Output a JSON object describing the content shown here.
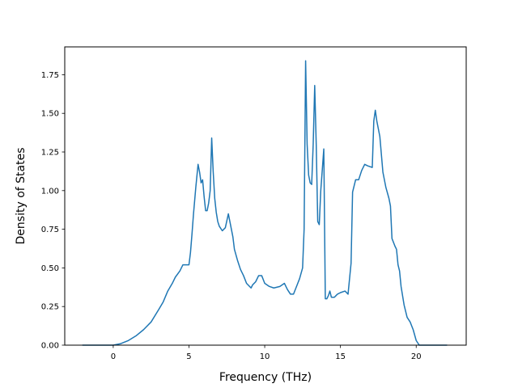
{
  "chart_data": {
    "type": "line",
    "title": "",
    "xlabel": "Frequency (THz)",
    "ylabel": "Density of States",
    "xlim": [
      -3.2,
      23.3
    ],
    "ylim": [
      0,
      1.93
    ],
    "x_ticks": [
      0,
      5,
      10,
      15,
      20
    ],
    "x_tick_labels": [
      "0",
      "5",
      "10",
      "15",
      "20"
    ],
    "y_ticks": [
      0,
      0.25,
      0.5,
      0.75,
      1.0,
      1.25,
      1.5,
      1.75
    ],
    "y_tick_labels": [
      "0.00",
      "0.25",
      "0.50",
      "0.75",
      "1.00",
      "1.25",
      "1.50",
      "1.75"
    ],
    "grid": false,
    "series": [
      {
        "color": "#1f77b4",
        "x": [
          -2.0,
          -1.0,
          0.0,
          0.5,
          1.0,
          1.5,
          2.0,
          2.5,
          3.0,
          3.3,
          3.6,
          3.9,
          4.1,
          4.4,
          4.6,
          4.8,
          5.0,
          5.1,
          5.2,
          5.3,
          5.45,
          5.6,
          5.7,
          5.8,
          5.9,
          6.0,
          6.1,
          6.2,
          6.3,
          6.4,
          6.5,
          6.6,
          6.7,
          6.8,
          6.9,
          7.0,
          7.2,
          7.4,
          7.6,
          7.9,
          8.0,
          8.2,
          8.4,
          8.6,
          8.8,
          9.0,
          9.1,
          9.2,
          9.4,
          9.6,
          9.8,
          10.0,
          10.3,
          10.6,
          11.0,
          11.3,
          11.5,
          11.7,
          11.9,
          12.1,
          12.3,
          12.5,
          12.6,
          12.7,
          12.8,
          12.9,
          13.0,
          13.1,
          13.2,
          13.3,
          13.4,
          13.5,
          13.6,
          13.7,
          13.9,
          14.0,
          14.1,
          14.2,
          14.3,
          14.4,
          14.5,
          14.6,
          14.7,
          14.8,
          15.0,
          15.3,
          15.5,
          15.7,
          15.8,
          15.9,
          16.0,
          16.2,
          16.4,
          16.6,
          16.8,
          17.1,
          17.2,
          17.3,
          17.4,
          17.6,
          17.8,
          18.0,
          18.2,
          18.3,
          18.4,
          18.6,
          18.7,
          18.8,
          18.9,
          19.0,
          19.2,
          19.4,
          19.6,
          19.8,
          20.0,
          20.2,
          20.5,
          21.0,
          22.0
        ],
        "y": [
          0.0,
          0.0,
          0.0,
          0.01,
          0.03,
          0.06,
          0.1,
          0.15,
          0.23,
          0.28,
          0.35,
          0.4,
          0.44,
          0.48,
          0.52,
          0.52,
          0.52,
          0.6,
          0.72,
          0.85,
          1.02,
          1.17,
          1.12,
          1.05,
          1.07,
          0.96,
          0.87,
          0.87,
          0.92,
          1.0,
          1.34,
          1.12,
          0.95,
          0.86,
          0.8,
          0.77,
          0.74,
          0.76,
          0.85,
          0.7,
          0.62,
          0.55,
          0.49,
          0.45,
          0.4,
          0.38,
          0.37,
          0.39,
          0.41,
          0.45,
          0.45,
          0.4,
          0.38,
          0.37,
          0.38,
          0.4,
          0.36,
          0.33,
          0.33,
          0.38,
          0.43,
          0.5,
          0.75,
          1.84,
          1.3,
          1.1,
          1.05,
          1.04,
          1.3,
          1.68,
          1.3,
          0.8,
          0.78,
          1.0,
          1.27,
          0.3,
          0.3,
          0.32,
          0.35,
          0.31,
          0.31,
          0.31,
          0.32,
          0.33,
          0.34,
          0.35,
          0.33,
          0.53,
          0.99,
          1.03,
          1.07,
          1.07,
          1.13,
          1.17,
          1.16,
          1.15,
          1.45,
          1.52,
          1.45,
          1.35,
          1.12,
          1.02,
          0.95,
          0.9,
          0.69,
          0.64,
          0.62,
          0.52,
          0.48,
          0.38,
          0.26,
          0.18,
          0.15,
          0.1,
          0.03,
          0.0,
          0.0,
          0.0,
          0.0
        ]
      }
    ]
  }
}
